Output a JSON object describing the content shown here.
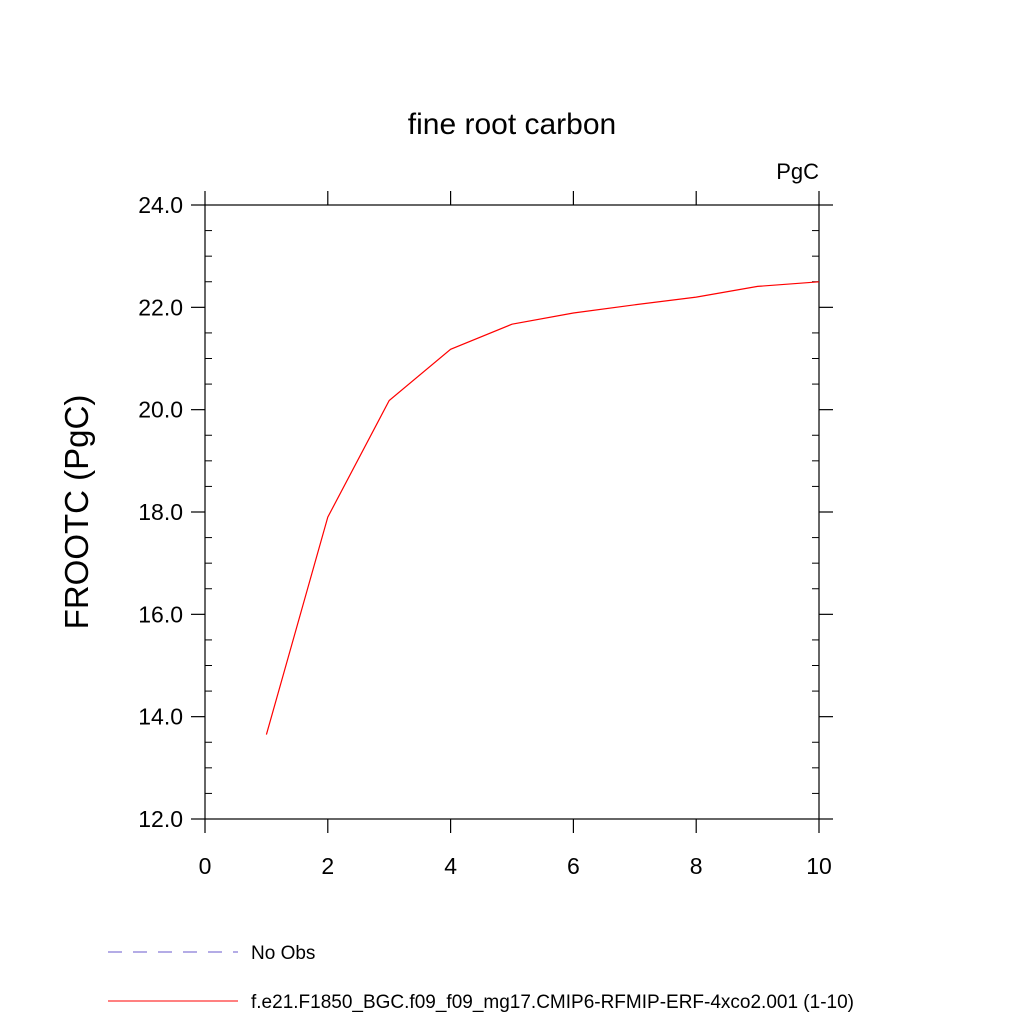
{
  "chart_data": {
    "type": "line",
    "title": "fine root carbon",
    "units": "PgC",
    "xlabel": "",
    "ylabel": "FROOTC  (PgC)",
    "xlim": [
      0,
      10
    ],
    "ylim": [
      12.0,
      24.0
    ],
    "x_major_ticks": [
      0,
      2,
      4,
      6,
      8,
      10
    ],
    "x_tick_labels": [
      "0",
      "2",
      "4",
      "6",
      "8",
      "10"
    ],
    "y_major_ticks": [
      12,
      14,
      16,
      18,
      20,
      22,
      24
    ],
    "y_tick_labels": [
      "12.0",
      "14.0",
      "16.0",
      "18.0",
      "20.0",
      "22.0",
      "24.0"
    ],
    "y_minor_step": 0.5,
    "grid": false,
    "legend_position": "bottom",
    "series": [
      {
        "name": "f.e21.F1850_BGC.f09_f09_mg17.CMIP6-RFMIP-ERF-4xco2.001 (1-10)",
        "color": "#ff0000",
        "dash": "solid",
        "x": [
          1,
          2,
          3,
          4,
          5,
          6,
          7,
          8,
          9,
          10
        ],
        "values": [
          13.65,
          17.9,
          20.18,
          21.18,
          21.67,
          21.89,
          22.05,
          22.2,
          22.41,
          22.5
        ]
      }
    ],
    "legend": [
      {
        "label": "No Obs",
        "color": "#6a5acd",
        "dash": "dashed"
      },
      {
        "label": "f.e21.F1850_BGC.f09_f09_mg17.CMIP6-RFMIP-ERF-4xco2.001 (1-10)",
        "color": "#ff0000",
        "dash": "solid"
      }
    ]
  }
}
